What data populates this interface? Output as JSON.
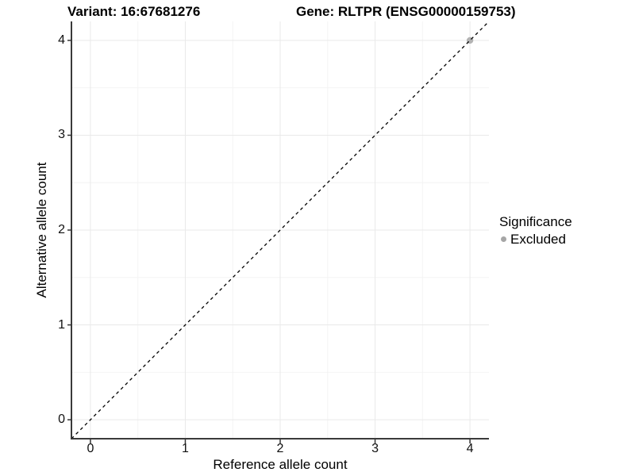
{
  "titles": {
    "variant": "Variant: 16:67681276",
    "gene": "Gene: RLTPR (ENSG00000159753)"
  },
  "chart_data": {
    "type": "scatter",
    "xlabel": "Reference allele count",
    "ylabel": "Alternative allele count",
    "xlim": [
      -0.2,
      4.2
    ],
    "ylim": [
      -0.2,
      4.2
    ],
    "x_ticks": [
      0,
      1,
      2,
      3,
      4
    ],
    "y_ticks": [
      0,
      1,
      2,
      3,
      4
    ],
    "x_minor_ticks": [
      0.5,
      1.5,
      2.5,
      3.5
    ],
    "y_minor_ticks": [
      0.5,
      1.5,
      2.5,
      3.5
    ],
    "grid": "major and minor gridlines, white panel background",
    "identity_line": {
      "style": "dashed",
      "equation": "y = x",
      "color": "#000000"
    },
    "series": [
      {
        "name": "Excluded",
        "color": "#b3b3b3",
        "points": [
          [
            4,
            4
          ]
        ]
      }
    ],
    "legend": {
      "title": "Significance",
      "position": "right",
      "items": [
        {
          "label": "Excluded",
          "color": "#a6a6a6"
        }
      ]
    },
    "colors": {
      "grid_major": "#e9e9e9",
      "grid_minor": "#f4f4f4",
      "axis_line": "#3a3a3a",
      "tick_mark": "#333333"
    }
  }
}
